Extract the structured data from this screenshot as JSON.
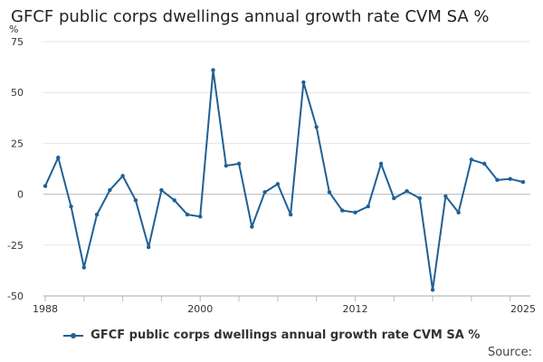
{
  "chart_data": {
    "type": "line",
    "title": "GFCF public corps dwellings annual growth rate CVM SA %",
    "ylabel": "%",
    "xlabel": "",
    "ylim": [
      -50,
      75
    ],
    "y_ticks": [
      -50,
      -25,
      0,
      25,
      50,
      75
    ],
    "xlim": [
      1988,
      2025
    ],
    "x_tick_labels": [
      "1988",
      "2000",
      "2012",
      "2025"
    ],
    "x_tick_positions": [
      1988,
      2000,
      2012,
      2025
    ],
    "grid": true,
    "legend_position": "bottom",
    "series": [
      {
        "name": "GFCF public corps dwellings annual growth rate CVM SA %",
        "color": "#206095",
        "x": [
          1988,
          1989,
          1990,
          1991,
          1992,
          1993,
          1994,
          1995,
          1996,
          1997,
          1998,
          1999,
          2000,
          2001,
          2002,
          2003,
          2004,
          2005,
          2006,
          2007,
          2008,
          2009,
          2010,
          2011,
          2012,
          2013,
          2014,
          2015,
          2016,
          2017,
          2018,
          2019,
          2020,
          2021,
          2022,
          2023,
          2024,
          2025
        ],
        "values": [
          4,
          18,
          -6,
          -36,
          -10,
          2,
          9,
          -3,
          -26,
          2,
          -3,
          -10,
          -11,
          61,
          14,
          15,
          -16,
          1,
          5,
          -10,
          55,
          33,
          1,
          -8,
          -9,
          -6,
          15,
          -2,
          1.5,
          -2,
          -47,
          -1,
          -9,
          17,
          15,
          7,
          7.5,
          6
        ]
      }
    ]
  },
  "source_label": "Source:"
}
